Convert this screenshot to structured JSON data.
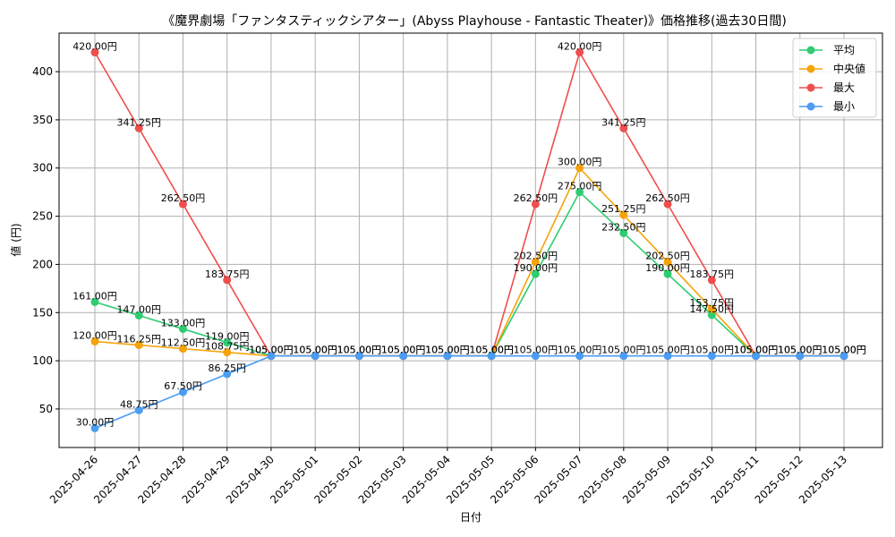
{
  "chart_data": {
    "type": "line",
    "title": "《魔界劇場「ファンタスティックシアター」(Abyss Playhouse - Fantastic Theater)》価格推移(過去30日間)",
    "xlabel": "日付",
    "ylabel": "値 (円)",
    "ylim": [
      10,
      440
    ],
    "yticks": [
      50,
      100,
      150,
      200,
      250,
      300,
      350,
      400
    ],
    "grid": true,
    "legend_position": "top-right",
    "categories": [
      "2025-04-26",
      "2025-04-27",
      "2025-04-28",
      "2025-04-29",
      "2025-04-30",
      "2025-05-01",
      "2025-05-02",
      "2025-05-03",
      "2025-05-04",
      "2025-05-05",
      "2025-05-06",
      "2025-05-07",
      "2025-05-08",
      "2025-05-09",
      "2025-05-10",
      "2025-05-11",
      "2025-05-12",
      "2025-05-13"
    ],
    "series": [
      {
        "name": "平均",
        "color": "#2ecc71",
        "values": [
          161.0,
          147.0,
          133.0,
          119.0,
          105.0,
          105.0,
          105.0,
          105.0,
          105.0,
          105.0,
          190.0,
          275.0,
          232.5,
          190.0,
          147.5,
          105.0,
          105.0,
          105.0
        ],
        "labels": [
          "161.00円",
          "147.00円",
          "133.00円",
          "119.00円",
          "",
          "",
          "",
          "",
          "",
          "",
          "190.00円",
          "275.00円",
          "232.50円",
          "190.00円",
          "147.50円",
          "",
          "",
          ""
        ]
      },
      {
        "name": "中央値",
        "color": "#f5a30a",
        "values": [
          120.0,
          116.25,
          112.5,
          108.75,
          105.0,
          105.0,
          105.0,
          105.0,
          105.0,
          105.0,
          202.5,
          300.0,
          251.25,
          202.5,
          153.75,
          105.0,
          105.0,
          105.0
        ],
        "labels": [
          "120.00円",
          "116.25円",
          "112.50円",
          "108.75円",
          "",
          "",
          "",
          "",
          "",
          "",
          "202.50円",
          "300.00円",
          "251.25円",
          "202.50円",
          "153.75円",
          "",
          "",
          ""
        ]
      },
      {
        "name": "最大",
        "color": "#ef4e4e",
        "values": [
          420.0,
          341.25,
          262.5,
          183.75,
          105.0,
          105.0,
          105.0,
          105.0,
          105.0,
          105.0,
          262.5,
          420.0,
          341.25,
          262.5,
          183.75,
          105.0,
          105.0,
          105.0
        ],
        "labels": [
          "420.00円",
          "341.25円",
          "262.50円",
          "183.75円",
          "105.00円",
          "105.00円",
          "105.00円",
          "105.00円",
          "105.00円",
          "105.00円",
          "262.50円",
          "420.00円",
          "341.25円",
          "262.50円",
          "183.75円",
          "105.00円",
          "105.00円",
          "105.00円"
        ]
      },
      {
        "name": "最小",
        "color": "#4b9cf2",
        "values": [
          30.0,
          48.75,
          67.5,
          86.25,
          105.0,
          105.0,
          105.0,
          105.0,
          105.0,
          105.0,
          105.0,
          105.0,
          105.0,
          105.0,
          105.0,
          105.0,
          105.0,
          105.0
        ],
        "labels": [
          "30.00円",
          "48.75円",
          "67.50円",
          "86.25円",
          "105.00円",
          "105.00円",
          "105.00円",
          "105.00円",
          "105.00円",
          "105.00円",
          "105.00円",
          "105.00円",
          "105.00円",
          "105.00円",
          "105.00円",
          "105.00円",
          "105.00円",
          "105.00円"
        ]
      }
    ]
  }
}
